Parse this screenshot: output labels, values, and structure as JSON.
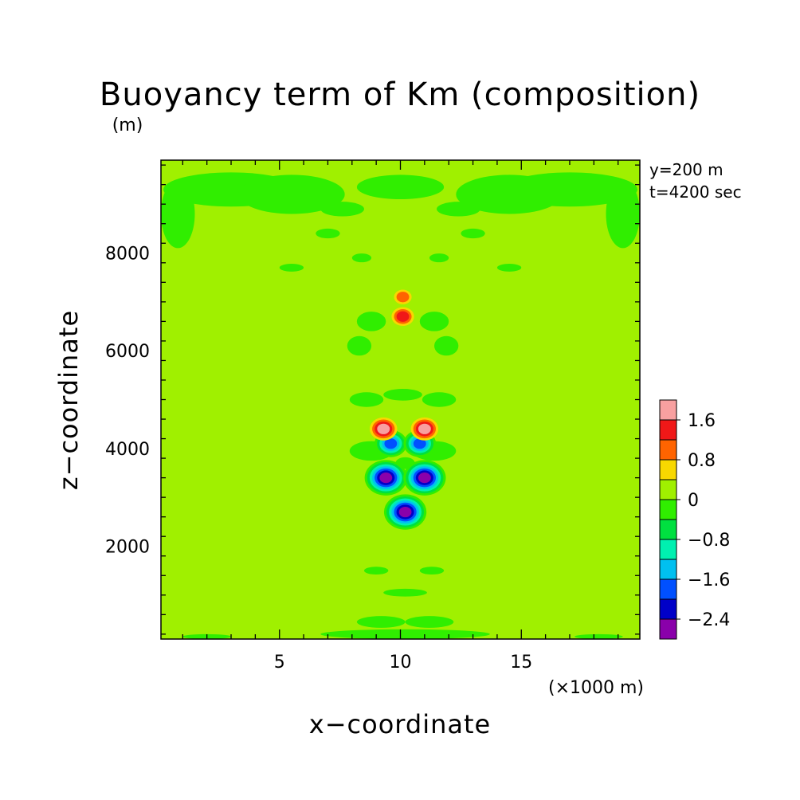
{
  "chart_data": {
    "type": "heatmap",
    "title": "Buoyancy term of Km (composition)",
    "xlabel": "x−coordinate",
    "ylabel": "z−coordinate",
    "x_unit": "(×1000 m)",
    "y_unit": "(m)",
    "xlim": [
      0.1,
      19.9
    ],
    "ylim": [
      100,
      9900
    ],
    "x_ticks": [
      5,
      10,
      15
    ],
    "x_tick_labels": [
      "5",
      "10",
      "15"
    ],
    "y_ticks": [
      2000,
      4000,
      6000,
      8000
    ],
    "y_tick_labels": [
      "2000",
      "4000",
      "6000",
      "8000"
    ],
    "annotations": [
      "y=200 m",
      "t=4200 sec"
    ],
    "background_level": "0 to 0.4",
    "colorbar": {
      "levels": [
        -2.8,
        -2.4,
        -2.0,
        -1.6,
        -1.2,
        -0.8,
        -0.4,
        0,
        0.4,
        0.8,
        1.2,
        1.6,
        2.0
      ],
      "tick_values": [
        1.6,
        0.8,
        0,
        -0.8,
        -1.6,
        -2.4
      ],
      "tick_labels": [
        "1.6",
        "0.8",
        "0",
        "−0.8",
        "−1.6",
        "−2.4"
      ],
      "colors": [
        "#8a00aa",
        "#0000c8",
        "#0050ff",
        "#00c0f0",
        "#00f0b0",
        "#00e040",
        "#30ee00",
        "#a0f000",
        "#f8d800",
        "#ff6400",
        "#f01818",
        "#f8a0a0"
      ]
    },
    "features": [
      {
        "x": 10.2,
        "z": 2700,
        "value": -2.4,
        "kind": "minimum"
      },
      {
        "x": 9.4,
        "z": 3400,
        "value": -2.4,
        "kind": "minimum"
      },
      {
        "x": 11.0,
        "z": 3400,
        "value": -2.4,
        "kind": "minimum"
      },
      {
        "x": 9.6,
        "z": 4100,
        "value": -1.6,
        "kind": "minimum"
      },
      {
        "x": 10.8,
        "z": 4100,
        "value": -1.6,
        "kind": "minimum"
      },
      {
        "x": 9.3,
        "z": 4400,
        "value": 1.6,
        "kind": "maximum"
      },
      {
        "x": 11.0,
        "z": 4400,
        "value": 1.6,
        "kind": "maximum"
      },
      {
        "x": 10.1,
        "z": 6700,
        "value": 1.2,
        "kind": "maximum"
      },
      {
        "x": 10.1,
        "z": 7100,
        "value": 0.8,
        "kind": "maximum"
      }
    ],
    "negative_patches": [
      {
        "x": 3.0,
        "z": 9300,
        "rx": 2.8,
        "rz": 350
      },
      {
        "x": 5.5,
        "z": 9200,
        "rx": 2.2,
        "rz": 400
      },
      {
        "x": 14.5,
        "z": 9200,
        "rx": 2.2,
        "rz": 400
      },
      {
        "x": 17.0,
        "z": 9300,
        "rx": 2.8,
        "rz": 350
      },
      {
        "x": 0.8,
        "z": 8800,
        "rx": 0.7,
        "rz": 700
      },
      {
        "x": 19.2,
        "z": 8800,
        "rx": 0.7,
        "rz": 700
      },
      {
        "x": 10.0,
        "z": 9350,
        "rx": 1.8,
        "rz": 250
      },
      {
        "x": 7.6,
        "z": 8900,
        "rx": 0.9,
        "rz": 150
      },
      {
        "x": 12.4,
        "z": 8900,
        "rx": 0.9,
        "rz": 150
      },
      {
        "x": 7.0,
        "z": 8400,
        "rx": 0.5,
        "rz": 100
      },
      {
        "x": 13.0,
        "z": 8400,
        "rx": 0.5,
        "rz": 100
      },
      {
        "x": 8.4,
        "z": 7900,
        "rx": 0.4,
        "rz": 90
      },
      {
        "x": 11.6,
        "z": 7900,
        "rx": 0.4,
        "rz": 90
      },
      {
        "x": 5.5,
        "z": 7700,
        "rx": 0.5,
        "rz": 80
      },
      {
        "x": 14.5,
        "z": 7700,
        "rx": 0.5,
        "rz": 80
      },
      {
        "x": 8.8,
        "z": 6600,
        "rx": 0.6,
        "rz": 200
      },
      {
        "x": 11.4,
        "z": 6600,
        "rx": 0.6,
        "rz": 200
      },
      {
        "x": 8.3,
        "z": 6100,
        "rx": 0.5,
        "rz": 200
      },
      {
        "x": 11.9,
        "z": 6100,
        "rx": 0.5,
        "rz": 200
      },
      {
        "x": 8.6,
        "z": 5000,
        "rx": 0.7,
        "rz": 150
      },
      {
        "x": 11.6,
        "z": 5000,
        "rx": 0.7,
        "rz": 150
      },
      {
        "x": 10.1,
        "z": 5100,
        "rx": 0.8,
        "rz": 120
      },
      {
        "x": 8.8,
        "z": 3950,
        "rx": 0.9,
        "rz": 200
      },
      {
        "x": 11.4,
        "z": 3950,
        "rx": 0.9,
        "rz": 200
      },
      {
        "x": 10.2,
        "z": 3700,
        "rx": 0.4,
        "rz": 120
      },
      {
        "x": 9.0,
        "z": 1500,
        "rx": 0.5,
        "rz": 80
      },
      {
        "x": 11.3,
        "z": 1500,
        "rx": 0.5,
        "rz": 80
      },
      {
        "x": 10.2,
        "z": 1050,
        "rx": 0.9,
        "rz": 80
      },
      {
        "x": 9.2,
        "z": 450,
        "rx": 1.0,
        "rz": 120
      },
      {
        "x": 11.2,
        "z": 450,
        "rx": 1.0,
        "rz": 120
      },
      {
        "x": 10.2,
        "z": 200,
        "rx": 3.5,
        "rz": 100
      },
      {
        "x": 2.0,
        "z": 150,
        "rx": 1.0,
        "rz": 50
      },
      {
        "x": 18.2,
        "z": 150,
        "rx": 1.0,
        "rz": 50
      }
    ]
  }
}
